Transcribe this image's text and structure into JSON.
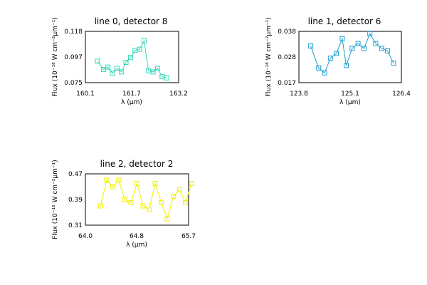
{
  "chart_data": [
    {
      "type": "line",
      "title": "line 0, detector 8",
      "xlabel": "λ (μm)",
      "ylabel": "Flux (10⁻¹⁸ W cm⁻²μm⁻¹)",
      "xlim": [
        160.1,
        163.2
      ],
      "ylim": [
        0.075,
        0.118
      ],
      "xticks": [
        "160.1",
        "161.7",
        "163.2"
      ],
      "yticks": [
        "0.075",
        "0.097",
        "0.118"
      ],
      "color": "#2fd8b8",
      "series": [
        {
          "x": [
            160.5,
            160.7,
            160.85,
            161.0,
            161.15,
            161.3,
            161.45,
            161.6,
            161.75,
            161.9,
            162.05,
            162.2,
            162.35,
            162.5,
            162.65,
            162.8
          ],
          "values": [
            0.093,
            0.086,
            0.088,
            0.083,
            0.087,
            0.084,
            0.092,
            0.096,
            0.102,
            0.103,
            0.11,
            0.085,
            0.084,
            0.087,
            0.08,
            0.079
          ]
        }
      ]
    },
    {
      "type": "line",
      "title": "line 1, detector 6",
      "xlabel": "λ (μm)",
      "ylabel": "Flux (10⁻¹⁸ W cm⁻²μm⁻¹)",
      "xlim": [
        123.8,
        126.4
      ],
      "ylim": [
        0.017,
        0.038
      ],
      "xticks": [
        "123.8",
        "125.1",
        "126.4"
      ],
      "yticks": [
        "0.017",
        "0.028",
        "0.038"
      ],
      "color": "#1f9fd0",
      "series": [
        {
          "x": [
            124.1,
            124.3,
            124.45,
            124.6,
            124.75,
            124.9,
            125.0,
            125.15,
            125.3,
            125.45,
            125.6,
            125.75,
            125.9,
            126.05,
            126.2
          ],
          "values": [
            0.032,
            0.023,
            0.021,
            0.027,
            0.029,
            0.035,
            0.024,
            0.031,
            0.033,
            0.031,
            0.037,
            0.033,
            0.031,
            0.03,
            0.025
          ]
        }
      ]
    },
    {
      "type": "line",
      "title": "line 2, detector 2",
      "xlabel": "λ (μm)",
      "ylabel": "Flux (10⁻¹⁸ W cm⁻²μm⁻¹)",
      "xlim": [
        64.0,
        65.7
      ],
      "ylim": [
        0.31,
        0.47
      ],
      "xticks": [
        "64.0",
        "64.8",
        "65.7"
      ],
      "yticks": [
        "0.31",
        "0.39",
        "0.47"
      ],
      "color": "#f0f000",
      "series": [
        {
          "x": [
            64.25,
            64.35,
            64.45,
            64.55,
            64.65,
            64.75,
            64.85,
            64.95,
            65.05,
            65.15,
            65.25,
            65.35,
            65.45,
            65.55,
            65.65,
            65.75
          ],
          "values": [
            0.37,
            0.45,
            0.43,
            0.45,
            0.39,
            0.38,
            0.44,
            0.37,
            0.36,
            0.44,
            0.38,
            0.33,
            0.4,
            0.42,
            0.38,
            0.44
          ]
        }
      ]
    }
  ]
}
